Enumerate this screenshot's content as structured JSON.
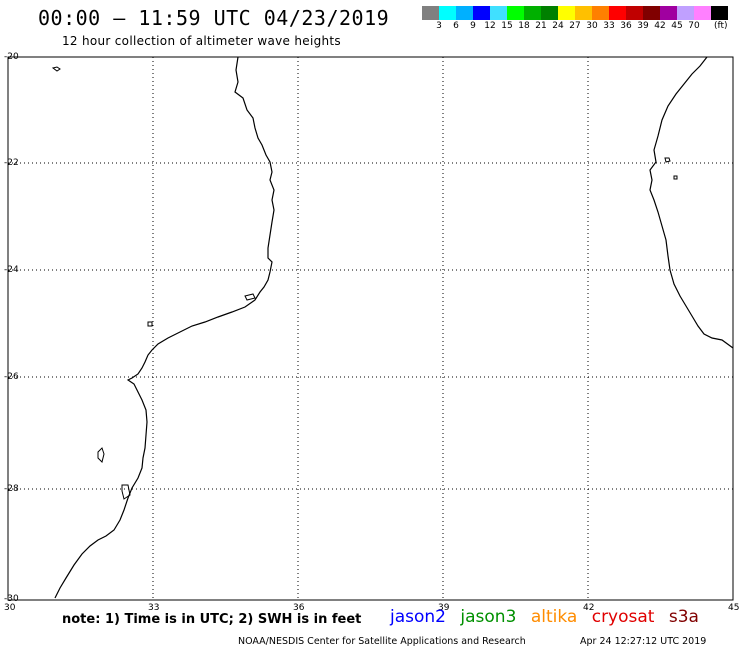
{
  "title": "00:00 – 11:59 UTC 04/23/2019",
  "subtitle": "12 hour collection of altimeter wave heights",
  "legend": {
    "colors": [
      "#808080",
      "#00ffff",
      "#00b0ff",
      "#0000ff",
      "#40e0ff",
      "#00ff00",
      "#00b000",
      "#008000",
      "#ffff00",
      "#ffc000",
      "#ff8000",
      "#ff0000",
      "#c00000",
      "#800000",
      "#a000a0",
      "#c0a0ff",
      "#ff80ff",
      "#000000"
    ],
    "labels": [
      "3",
      "6",
      "9",
      "12",
      "15",
      "18",
      "21",
      "24",
      "27",
      "30",
      "33",
      "36",
      "39",
      "42",
      "45",
      "70"
    ],
    "unit": "(ft)"
  },
  "axes": {
    "lat_labels": [
      "-20",
      "-22",
      "-24",
      "-26",
      "-28",
      "-30"
    ],
    "lon_labels": [
      "30",
      "33",
      "36",
      "39",
      "42",
      "45"
    ]
  },
  "note": "note:  1) Time is in UTC;  2) SWH is in feet",
  "satellites": [
    {
      "name": "jason2",
      "color": "#0000ff"
    },
    {
      "name": "jason3",
      "color": "#009000"
    },
    {
      "name": "altika",
      "color": "#ff8c00"
    },
    {
      "name": "cryosat",
      "color": "#e00000"
    },
    {
      "name": "s3a",
      "color": "#800000"
    }
  ],
  "footer": {
    "credit": "NOAA/NESDIS Center for Satellite Applications and Research",
    "timestamp": "Apr 24 12:27:12 UTC 2019"
  }
}
